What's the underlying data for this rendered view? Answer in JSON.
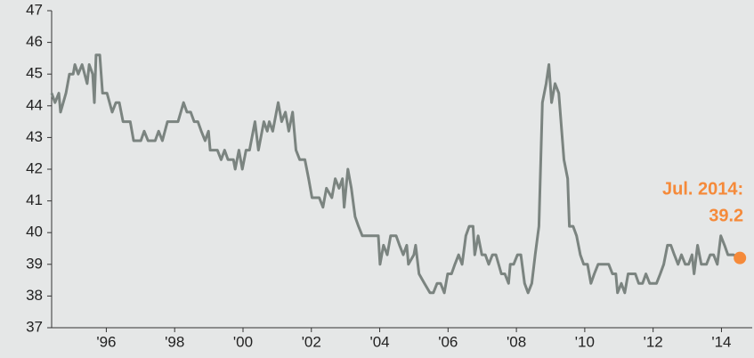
{
  "chart_data": {
    "type": "line",
    "xlim": [
      1994.4,
      2014.9
    ],
    "ylim": [
      37,
      47
    ],
    "yticks": [
      37,
      38,
      39,
      40,
      41,
      42,
      43,
      44,
      45,
      46,
      47
    ],
    "xticks": [
      {
        "value": 1996,
        "label": "'96"
      },
      {
        "value": 1998,
        "label": "'98"
      },
      {
        "value": 2000,
        "label": "'00"
      },
      {
        "value": 2002,
        "label": "'02"
      },
      {
        "value": 2004,
        "label": "'04"
      },
      {
        "value": 2006,
        "label": "'06"
      },
      {
        "value": 2008,
        "label": "'08"
      },
      {
        "value": 2010,
        "label": "'10"
      },
      {
        "value": 2012,
        "label": "'12"
      },
      {
        "value": 2014,
        "label": "'14"
      }
    ],
    "annotation": [
      "Jul. 2014:",
      "39.2"
    ],
    "highlight_color": "#f58a3a",
    "series": [
      {
        "color": "#7b8480",
        "x": [
          1994.4,
          1994.5,
          1994.61,
          1994.66,
          1994.82,
          1994.92,
          1995.03,
          1995.08,
          1995.18,
          1995.29,
          1995.44,
          1995.5,
          1995.6,
          1995.65,
          1995.7,
          1995.81,
          1995.89,
          1996.02,
          1996.17,
          1996.28,
          1996.38,
          1996.49,
          1996.7,
          1996.8,
          1997.01,
          1997.11,
          1997.22,
          1997.43,
          1997.53,
          1997.64,
          1997.79,
          1998.1,
          1998.26,
          1998.36,
          1998.47,
          1998.57,
          1998.68,
          1998.78,
          1998.89,
          1998.99,
          1999.04,
          1999.25,
          1999.36,
          1999.46,
          1999.56,
          1999.72,
          1999.77,
          1999.88,
          1999.98,
          2000.09,
          2000.19,
          2000.35,
          2000.45,
          2000.61,
          2000.71,
          2000.77,
          2000.87,
          2001.03,
          2001.13,
          2001.24,
          2001.34,
          2001.45,
          2001.55,
          2001.66,
          2001.81,
          2001.92,
          2002.02,
          2002.23,
          2002.34,
          2002.44,
          2002.6,
          2002.7,
          2002.81,
          2002.91,
          2002.96,
          2003.07,
          2003.17,
          2003.28,
          2003.38,
          2003.49,
          2003.59,
          2003.7,
          2003.96,
          2004.01,
          2004.11,
          2004.22,
          2004.32,
          2004.48,
          2004.58,
          2004.69,
          2004.79,
          2004.84,
          2005.0,
          2005.05,
          2005.15,
          2005.31,
          2005.47,
          2005.57,
          2005.68,
          2005.78,
          2005.89,
          2005.99,
          2006.1,
          2006.2,
          2006.31,
          2006.41,
          2006.52,
          2006.62,
          2006.73,
          2006.78,
          2006.88,
          2006.99,
          2007.09,
          2007.19,
          2007.3,
          2007.4,
          2007.56,
          2007.66,
          2007.77,
          2007.82,
          2007.92,
          2008.03,
          2008.13,
          2008.24,
          2008.34,
          2008.45,
          2008.55,
          2008.66,
          2008.76,
          2008.87,
          2008.95,
          2009.03,
          2009.13,
          2009.24,
          2009.39,
          2009.5,
          2009.55,
          2009.66,
          2009.76,
          2009.87,
          2009.97,
          2010.08,
          2010.18,
          2010.28,
          2010.39,
          2010.7,
          2010.81,
          2010.91,
          2010.96,
          2011.07,
          2011.17,
          2011.27,
          2011.48,
          2011.58,
          2011.69,
          2011.79,
          2011.9,
          2012.1,
          2012.21,
          2012.31,
          2012.42,
          2012.52,
          2012.62,
          2012.73,
          2012.83,
          2012.94,
          2013.04,
          2013.14,
          2013.2,
          2013.3,
          2013.41,
          2013.56,
          2013.67,
          2013.77,
          2013.88,
          2013.98,
          2014.09,
          2014.19,
          2014.35,
          2014.54
        ],
        "values": [
          44.4,
          44.1,
          44.4,
          43.8,
          44.4,
          45.0,
          45.0,
          45.3,
          45.0,
          45.3,
          44.7,
          45.3,
          45.0,
          44.1,
          45.6,
          45.6,
          44.4,
          44.4,
          43.8,
          44.1,
          44.1,
          43.5,
          43.5,
          42.9,
          42.9,
          43.2,
          42.9,
          42.9,
          43.2,
          42.9,
          43.5,
          43.5,
          44.1,
          43.8,
          43.8,
          43.5,
          43.5,
          43.2,
          42.9,
          43.2,
          42.6,
          42.6,
          42.3,
          42.6,
          42.3,
          42.3,
          42.0,
          42.6,
          42.0,
          42.6,
          42.6,
          43.5,
          42.6,
          43.5,
          43.2,
          43.5,
          43.2,
          44.1,
          43.5,
          43.8,
          43.2,
          43.8,
          42.6,
          42.3,
          42.3,
          41.7,
          41.1,
          41.1,
          40.8,
          41.4,
          41.1,
          41.7,
          41.4,
          41.7,
          40.8,
          42.0,
          41.4,
          40.5,
          40.2,
          39.9,
          39.9,
          39.9,
          39.9,
          39.0,
          39.6,
          39.3,
          39.9,
          39.9,
          39.6,
          39.3,
          39.6,
          39.0,
          39.3,
          39.6,
          38.7,
          38.4,
          38.1,
          38.1,
          38.4,
          38.4,
          38.1,
          38.7,
          38.7,
          39.0,
          39.3,
          39.0,
          39.9,
          40.2,
          40.2,
          39.3,
          39.9,
          39.3,
          39.3,
          39.0,
          39.3,
          39.3,
          38.7,
          38.7,
          38.4,
          39.0,
          39.0,
          39.3,
          39.3,
          38.4,
          38.1,
          38.4,
          39.3,
          40.2,
          44.1,
          44.7,
          45.3,
          44.1,
          44.7,
          44.4,
          42.3,
          41.7,
          40.2,
          40.2,
          39.9,
          39.3,
          39.0,
          39.0,
          38.4,
          38.7,
          39.0,
          39.0,
          38.7,
          38.7,
          38.1,
          38.4,
          38.1,
          38.7,
          38.7,
          38.4,
          38.4,
          38.7,
          38.4,
          38.4,
          38.7,
          39.0,
          39.6,
          39.6,
          39.3,
          39.0,
          39.3,
          39.0,
          39.0,
          39.3,
          38.7,
          39.6,
          39.0,
          39.0,
          39.3,
          39.3,
          39.0,
          39.9,
          39.6,
          39.3,
          39.3,
          39.2
        ]
      }
    ]
  }
}
